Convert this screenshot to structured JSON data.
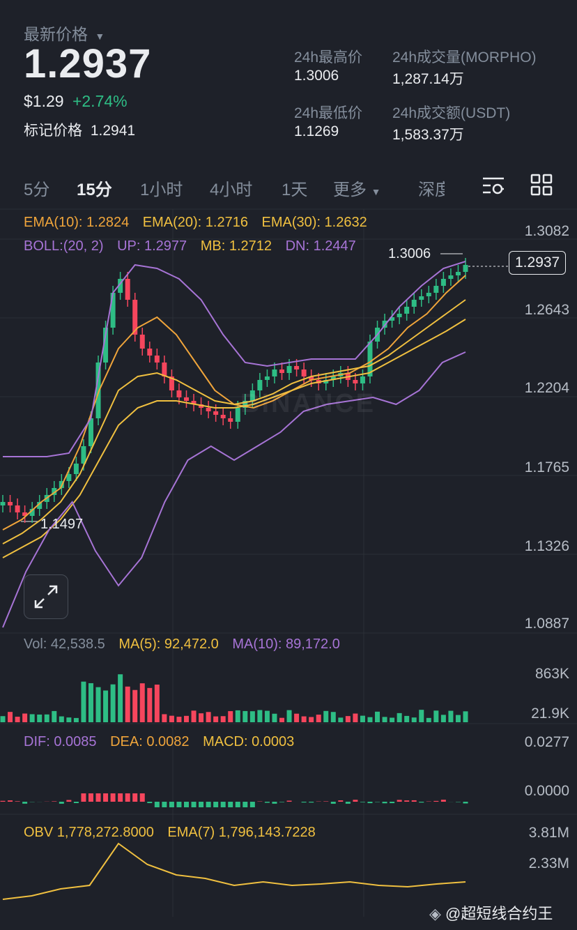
{
  "header": {
    "latest_price_label": "最新价格",
    "latest_price": "1.2937",
    "usd_price": "$1.29",
    "change_pct": "+2.74%",
    "mark_price_label": "标记价格",
    "mark_price": "1.2941",
    "high_label": "24h最高价",
    "high_value": "1.3006",
    "low_label": "24h最低价",
    "low_value": "1.1269",
    "vol_label": "24h成交量(MORPHO)",
    "vol_value": "1,287.14万",
    "amount_label": "24h成交额(USDT)",
    "amount_value": "1,583.37万"
  },
  "tabs": [
    "5分",
    "15分",
    "1小时",
    "4小时",
    "1天",
    "更多",
    "深度"
  ],
  "active_tab": "15分",
  "icons": {
    "settings": "sliders-icon",
    "layout": "grid-icon",
    "expand": "expand-icon",
    "dropdown": "chevron-down-icon"
  },
  "main_chart": {
    "ema10": "EMA(10): 1.2824",
    "ema20": "EMA(20): 1.2716",
    "ema30": "EMA(30): 1.2632",
    "boll": "BOLL:(20, 2)",
    "up": "UP: 1.2977",
    "mb": "MB: 1.2712",
    "dn": "DN: 1.2447",
    "axis": [
      "1.3082",
      "1.2643",
      "1.2204",
      "1.1765",
      "1.1326",
      "1.0887"
    ],
    "high_marker": "1.3006",
    "low_marker": "1.1497",
    "current_price_tag": "1.2937",
    "watermark": "BINANCE"
  },
  "volume": {
    "vol": "Vol: 42,538.5",
    "ma5": "MA(5): 92,472.0",
    "ma10": "MA(10): 89,172.0",
    "axis": [
      "863K",
      "21.9K"
    ]
  },
  "macd": {
    "dif": "DIF: 0.0085",
    "dea": "DEA: 0.0082",
    "macd": "MACD: 0.0003",
    "axis": [
      "0.0277",
      "0.0000"
    ]
  },
  "obv": {
    "obv": "OBV 1,778,272.8000",
    "ema7": "EMA(7) 1,796,143.7228",
    "axis": [
      "3.81M",
      "2.33M"
    ]
  },
  "footer": {
    "watermark": "@超短线合约王"
  },
  "colors": {
    "bg": "#1e2129",
    "up": "#2ebd85",
    "down": "#f6465d",
    "ema10": "#f0a53b",
    "ema20": "#f0c040",
    "boll": "#a774d6"
  }
}
